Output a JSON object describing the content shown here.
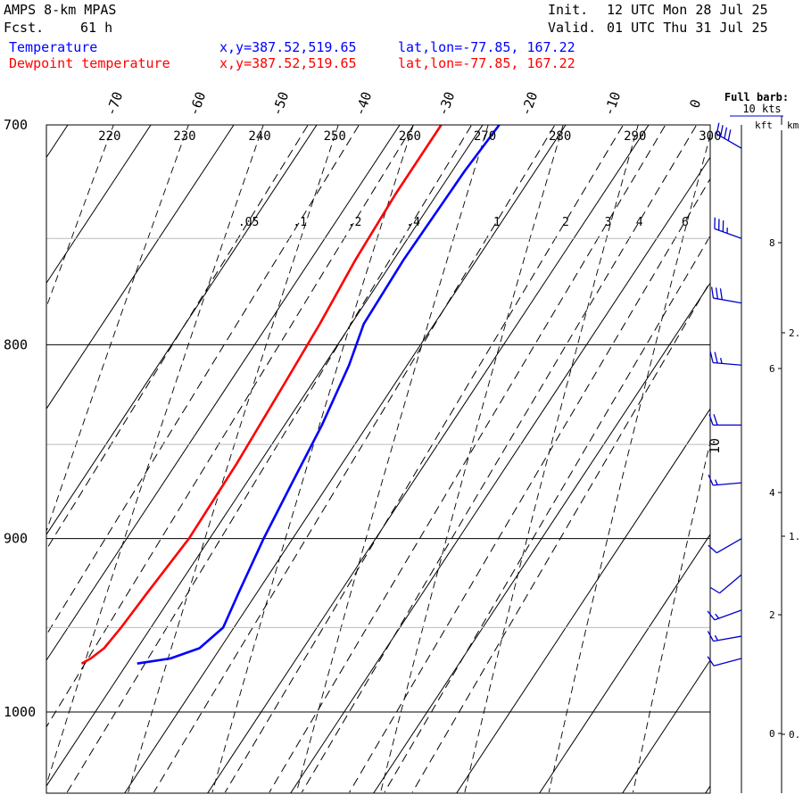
{
  "header": {
    "model": "AMPS 8-km MPAS",
    "forecast_label": "Fcst.",
    "forecast_hours": "61 h",
    "init_label": "Init.",
    "init_time": "12 UTC Mon 28 Jul 25",
    "valid_label": "Valid.",
    "valid_time": "01 UTC Thu 31 Jul 25"
  },
  "legend": {
    "temperature": {
      "label": "Temperature",
      "xy": "x,y=387.52,519.65",
      "latlon": "lat,lon=-77.85, 167.22",
      "color": "#0000ff"
    },
    "dewpoint": {
      "label": "Dewpoint temperature",
      "xy": "x,y=387.52,519.65",
      "latlon": "lat,lon=-77.85, 167.22",
      "color": "#ff0000"
    }
  },
  "barb_legend": {
    "line1": "Full barb:",
    "line2": "10 kts",
    "kft_label": "kft",
    "km_label": "km"
  },
  "chart_data": {
    "type": "line",
    "pressure_ticks": [
      "700",
      "800",
      "900",
      "1000"
    ],
    "pressure_range": [
      700,
      1040
    ],
    "pressure_scale": "log",
    "temperature_axis_labels": [
      "-70",
      "-60",
      "-50",
      "-40",
      "-30",
      "-20",
      "-10",
      "0"
    ],
    "dry_adiabat_labels": [
      "220",
      "230",
      "240",
      "250",
      "260",
      "270",
      "280",
      "290",
      "300"
    ],
    "mixing_ratio_labels": [
      ".05",
      ".1",
      ".2",
      ".4",
      "1",
      "2",
      "3",
      "4",
      "6"
    ],
    "wind_barb_note": "10",
    "series": [
      {
        "name": "Temperature",
        "color": "#0000ff",
        "points": [
          [
            700,
            -28.0
          ],
          [
            720,
            -28.5
          ],
          [
            760,
            -28.8
          ],
          [
            790,
            -28.5
          ],
          [
            810,
            -27.0
          ],
          [
            840,
            -25.5
          ],
          [
            870,
            -24.5
          ],
          [
            900,
            -23.5
          ],
          [
            930,
            -22.2
          ],
          [
            950,
            -21.3
          ],
          [
            962,
            -22.5
          ],
          [
            968,
            -25.2
          ],
          [
            971,
            -28.8
          ]
        ]
      },
      {
        "name": "Dewpoint temperature",
        "color": "#ff0000",
        "points": [
          [
            700,
            -35.0
          ],
          [
            730,
            -35.0
          ],
          [
            760,
            -34.6
          ],
          [
            790,
            -33.8
          ],
          [
            820,
            -33.3
          ],
          [
            860,
            -32.7
          ],
          [
            900,
            -32.5
          ],
          [
            930,
            -33.2
          ],
          [
            950,
            -33.6
          ],
          [
            962,
            -34.0
          ],
          [
            968,
            -34.8
          ],
          [
            971,
            -35.5
          ]
        ]
      }
    ],
    "height_kft_ticks": [
      "8",
      "6",
      "4",
      "2",
      "0"
    ],
    "height_km_ticks": [
      "2.",
      "1.",
      "0."
    ],
    "wind_barbs": [
      {
        "p": 710,
        "dir": 300,
        "spd": 40
      },
      {
        "p": 750,
        "dir": 290,
        "spd": 35
      },
      {
        "p": 780,
        "dir": 280,
        "spd": 30
      },
      {
        "p": 810,
        "dir": 275,
        "spd": 25
      },
      {
        "p": 840,
        "dir": 270,
        "spd": 20
      },
      {
        "p": 870,
        "dir": 265,
        "spd": 15
      },
      {
        "p": 900,
        "dir": 240,
        "spd": 10
      },
      {
        "p": 920,
        "dir": 230,
        "spd": 10
      },
      {
        "p": 940,
        "dir": 250,
        "spd": 15
      },
      {
        "p": 955,
        "dir": 260,
        "spd": 15
      },
      {
        "p": 968,
        "dir": 255,
        "spd": 10
      }
    ]
  }
}
